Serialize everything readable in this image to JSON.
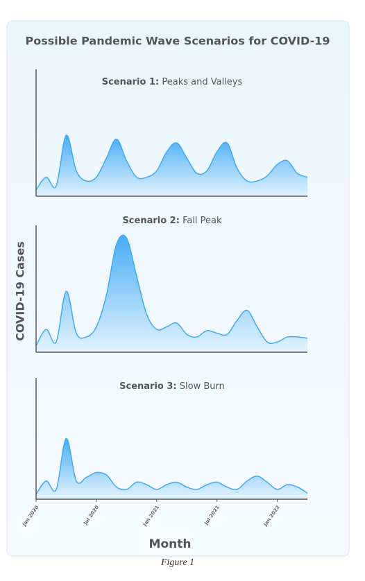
{
  "figure": {
    "title": "Possible Pandemic Wave Scenarios for COVID-19",
    "y_label": "COVID-19 Cases",
    "x_label": "Month",
    "caption": "Figure 1"
  },
  "chart_data": [
    {
      "type": "area",
      "scenario_label": "Scenario 1:",
      "title": "Peaks and Valleys",
      "color": "#3fa9f5",
      "ylim": [
        0,
        100
      ],
      "values": [
        5,
        15,
        8,
        48,
        20,
        12,
        15,
        30,
        45,
        28,
        15,
        15,
        20,
        35,
        42,
        30,
        18,
        20,
        35,
        42,
        22,
        12,
        12,
        16,
        25,
        28,
        18,
        15
      ]
    },
    {
      "type": "area",
      "scenario_label": "Scenario 2:",
      "title": "Fall Peak",
      "color": "#3fa9f5",
      "ylim": [
        0,
        100
      ],
      "values": [
        5,
        18,
        8,
        48,
        15,
        12,
        20,
        45,
        85,
        90,
        60,
        30,
        18,
        20,
        23,
        14,
        12,
        17,
        15,
        14,
        25,
        33,
        20,
        8,
        8,
        12,
        12,
        11
      ]
    },
    {
      "type": "area",
      "scenario_label": "Scenario 3:",
      "title": "Slow Burn",
      "color": "#3fa9f5",
      "ylim": [
        0,
        100
      ],
      "categories": [
        "Jan 2020",
        null,
        null,
        null,
        null,
        null,
        "Jul 2020",
        null,
        null,
        null,
        null,
        null,
        "Jan 2021",
        null,
        null,
        null,
        null,
        null,
        "Jul 2021",
        null,
        null,
        null,
        null,
        null,
        "Jan 2022",
        null,
        null,
        null
      ],
      "values": [
        4,
        15,
        8,
        50,
        15,
        18,
        22,
        20,
        10,
        8,
        14,
        12,
        8,
        12,
        14,
        10,
        8,
        12,
        14,
        10,
        8,
        15,
        19,
        14,
        8,
        12,
        10,
        5
      ]
    }
  ]
}
